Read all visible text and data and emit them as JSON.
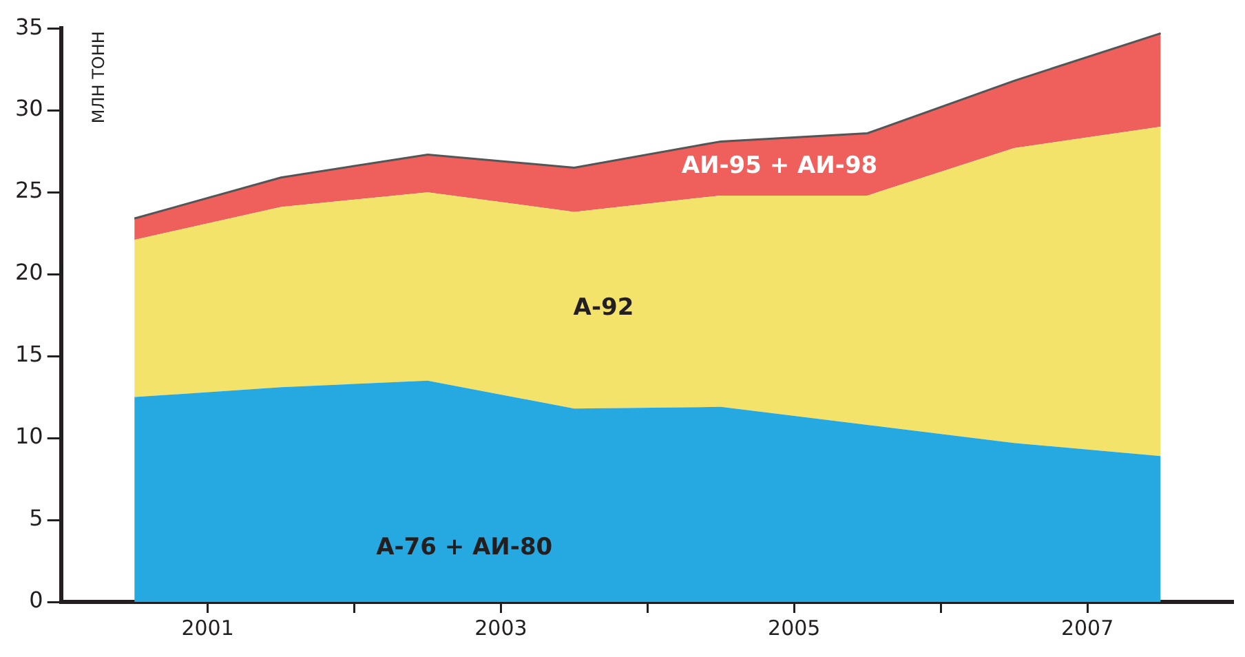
{
  "chart_data": {
    "type": "area",
    "ylabel": "МЛН ТОНН",
    "stacked": true,
    "x": [
      2000.5,
      2001.5,
      2002.5,
      2003.5,
      2004.5,
      2005.5,
      2006.5,
      2007.5
    ],
    "series": [
      {
        "name": "А-76 + АИ-80",
        "color": "#26a9e0",
        "values": [
          12.5,
          13.1,
          13.5,
          11.8,
          11.9,
          10.8,
          9.7,
          8.9
        ]
      },
      {
        "name": "А-92",
        "color": "#f3e36a",
        "values": [
          9.6,
          11.0,
          11.5,
          12.0,
          12.9,
          14.0,
          18.0,
          20.1
        ]
      },
      {
        "name": "АИ-95 + АИ-98",
        "color": "#ef5f5c",
        "values": [
          1.3,
          1.8,
          2.3,
          2.7,
          3.3,
          3.8,
          4.1,
          5.7
        ]
      }
    ],
    "xlim": [
      2000,
      2008
    ],
    "xticks": [
      2001,
      {
        "value": 2002,
        "label": null
      },
      2003,
      {
        "value": 2004,
        "label": null
      },
      2005,
      {
        "value": 2006,
        "label": null
      },
      2007
    ],
    "ylim": [
      0,
      35
    ],
    "yticks": [
      0,
      5,
      10,
      15,
      20,
      25,
      30,
      35
    ],
    "grid": false,
    "legend": false
  }
}
